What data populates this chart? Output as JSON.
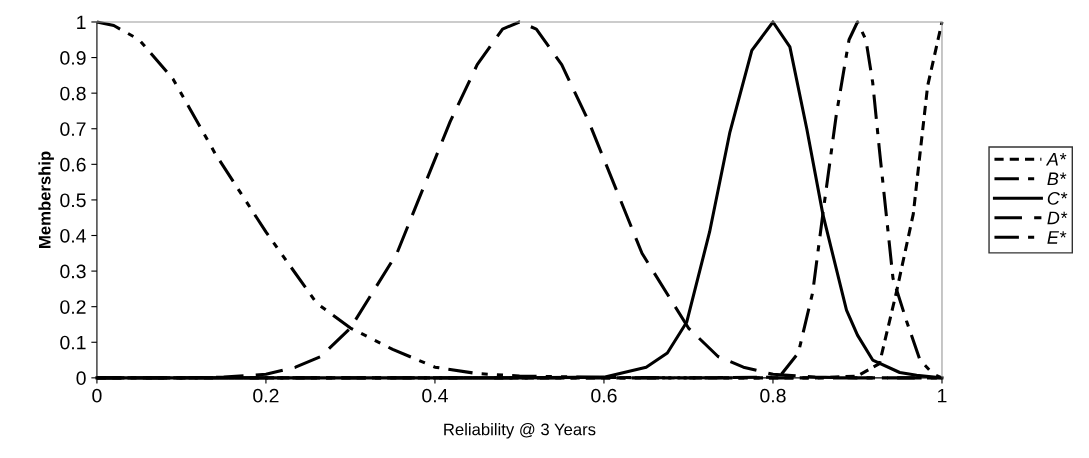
{
  "chart_data": {
    "type": "line",
    "xlabel": "Reliability @ 3 Years",
    "ylabel": "Membership",
    "xlim": [
      0,
      1
    ],
    "ylim": [
      0,
      1
    ],
    "xticks": [
      0,
      0.2,
      0.4,
      0.6,
      0.8,
      1
    ],
    "yticks": [
      0,
      0.1,
      0.2,
      0.3,
      0.4,
      0.5,
      0.6,
      0.7,
      0.8,
      0.9,
      1
    ],
    "grid": false,
    "legend": "right",
    "marker": "none",
    "series": [
      {
        "name": "A*",
        "color": "#000000",
        "line_style": "dashed",
        "x": [
          0,
          0.85,
          0.9,
          0.926,
          0.946,
          0.966,
          0.974,
          0.983,
          1
        ],
        "values": [
          0,
          0,
          0.005,
          0.04,
          0.24,
          0.46,
          0.63,
          0.82,
          1
        ]
      },
      {
        "name": "B*",
        "color": "#000000",
        "line_style": "dashdot",
        "x": [
          0,
          0.7,
          0.8,
          0.81,
          0.83,
          0.847,
          0.859,
          0.875,
          0.89,
          0.9,
          0.91,
          0.918,
          0.926,
          0.942,
          0.958,
          0.974,
          0.99,
          1
        ],
        "values": [
          0,
          0,
          0.002,
          0.01,
          0.07,
          0.24,
          0.46,
          0.74,
          0.95,
          1,
          0.95,
          0.83,
          0.64,
          0.28,
          0.16,
          0.05,
          0.01,
          0
        ]
      },
      {
        "name": "C*",
        "color": "#000000",
        "line_style": "solid",
        "x": [
          0,
          0.5,
          0.6,
          0.65,
          0.675,
          0.698,
          0.725,
          0.749,
          0.775,
          0.8,
          0.82,
          0.84,
          0.859,
          0.887,
          0.9,
          0.918,
          0.95,
          0.97,
          1
        ],
        "values": [
          0,
          0,
          0.002,
          0.03,
          0.07,
          0.157,
          0.41,
          0.69,
          0.92,
          1,
          0.93,
          0.7,
          0.46,
          0.19,
          0.12,
          0.05,
          0.015,
          0.007,
          0
        ]
      },
      {
        "name": "D*",
        "color": "#000000",
        "line_style": "longdash",
        "x": [
          0,
          0.1,
          0.15,
          0.2,
          0.235,
          0.265,
          0.3,
          0.355,
          0.418,
          0.45,
          0.48,
          0.5,
          0.52,
          0.55,
          0.582,
          0.645,
          0.7,
          0.735,
          0.765,
          0.8,
          0.85,
          0.9,
          1
        ],
        "values": [
          0,
          0,
          0.002,
          0.01,
          0.03,
          0.06,
          0.14,
          0.35,
          0.72,
          0.88,
          0.98,
          1,
          0.98,
          0.88,
          0.72,
          0.35,
          0.14,
          0.06,
          0.03,
          0.01,
          0.002,
          0,
          0
        ]
      },
      {
        "name": "E*",
        "color": "#000000",
        "line_style": "dashdotdot",
        "x": [
          0,
          0.02,
          0.05,
          0.09,
          0.14,
          0.2,
          0.26,
          0.3,
          0.35,
          0.4,
          0.45,
          0.5,
          0.6,
          0.7,
          1
        ],
        "values": [
          1,
          0.99,
          0.95,
          0.84,
          0.63,
          0.41,
          0.21,
          0.14,
          0.08,
          0.03,
          0.012,
          0.005,
          0.001,
          0,
          0
        ]
      }
    ]
  }
}
